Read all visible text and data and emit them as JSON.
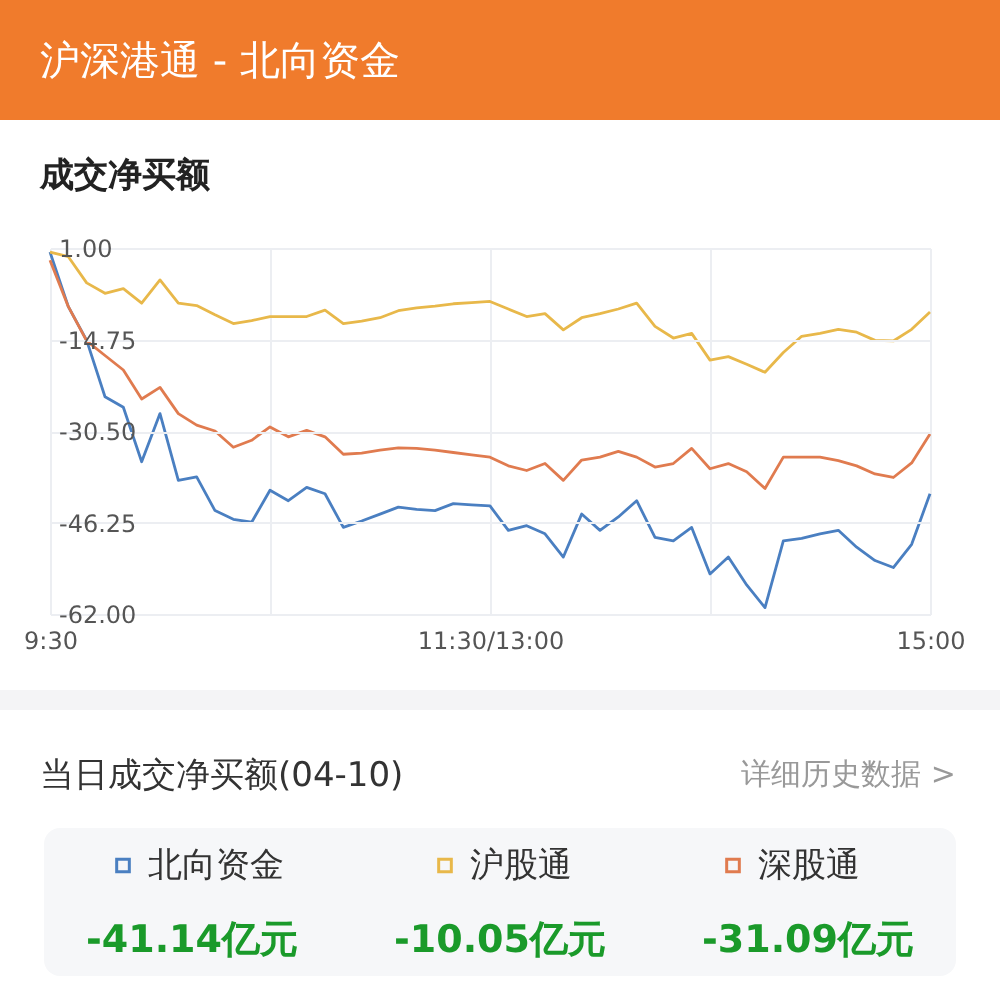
{
  "chart_data": {
    "type": "line",
    "title": "沪深港通 - 北向资金",
    "subtitle": "成交净买额",
    "categories": [
      "9:30",
      null,
      null,
      null,
      null,
      null,
      null,
      null,
      null,
      null,
      null,
      null,
      null,
      null,
      null,
      null,
      null,
      null,
      null,
      null,
      null,
      null,
      null,
      null,
      "11:30/13:00",
      null,
      null,
      null,
      null,
      null,
      null,
      null,
      null,
      null,
      null,
      null,
      null,
      null,
      null,
      null,
      null,
      null,
      null,
      null,
      null,
      null,
      null,
      null,
      "15:00"
    ],
    "ylim": [
      -62,
      1
    ],
    "yticks": [
      {
        "value": 1,
        "label": "1.00"
      },
      {
        "value": -14.75,
        "label": "-14.75"
      },
      {
        "value": -30.5,
        "label": "-30.50"
      },
      {
        "value": -46.25,
        "label": "-46.25"
      },
      {
        "value": -62,
        "label": "-62.00"
      }
    ],
    "grid": true,
    "legend": "bottom",
    "series": [
      {
        "name": "北向资金",
        "color": "#4a7fc1",
        "values": [
          0.3,
          -9.1,
          -14.9,
          -24.6,
          -26.4,
          -35.8,
          -27.5,
          -39.0,
          -38.4,
          -44.2,
          -45.7,
          -46.2,
          -40.7,
          -42.5,
          -40.2,
          -41.3,
          -47.1,
          -46.0,
          -44.8,
          -43.6,
          -44.0,
          -44.2,
          -43.0,
          -43.2,
          -43.4,
          -47.6,
          -46.8,
          -48.2,
          -52.2,
          -44.8,
          -47.6,
          -45.3,
          -42.5,
          -48.8,
          -49.4,
          -47.1,
          -55.1,
          -52.2,
          -57.0,
          -60.9,
          -49.4,
          -49.0,
          -48.2,
          -47.6,
          -50.5,
          -52.8,
          -54.0,
          -50.0,
          -41.3
        ]
      },
      {
        "name": "沪股通",
        "color": "#e8b84a",
        "values": [
          0.3,
          -0.5,
          -5.0,
          -6.8,
          -6.0,
          -8.5,
          -4.5,
          -8.5,
          -8.9,
          -10.5,
          -12.0,
          -11.5,
          -10.8,
          -10.8,
          -10.8,
          -9.7,
          -12.0,
          -11.6,
          -11.0,
          -9.8,
          -9.3,
          -9.0,
          -8.6,
          -8.4,
          -8.2,
          -9.5,
          -10.8,
          -10.3,
          -13.1,
          -11.0,
          -10.3,
          -9.5,
          -8.5,
          -12.5,
          -14.5,
          -13.7,
          -18.3,
          -17.7,
          -19.0,
          -20.4,
          -17.0,
          -14.2,
          -13.7,
          -13.0,
          -13.5,
          -14.9,
          -15.0,
          -13.0,
          -10.0
        ]
      },
      {
        "name": "深股通",
        "color": "#e07b4f",
        "values": [
          -1.1,
          -9.1,
          -15.0,
          -17.5,
          -20.0,
          -25.0,
          -23.0,
          -27.5,
          -29.5,
          -30.5,
          -33.3,
          -32.1,
          -29.8,
          -31.5,
          -30.4,
          -31.5,
          -34.5,
          -34.3,
          -33.8,
          -33.4,
          -33.5,
          -33.8,
          -34.2,
          -34.6,
          -35.0,
          -36.5,
          -37.3,
          -36.1,
          -39.0,
          -35.5,
          -35.0,
          -34.0,
          -35.0,
          -36.7,
          -36.1,
          -33.5,
          -37.0,
          -36.1,
          -37.5,
          -40.4,
          -35.0,
          -35.0,
          -35.0,
          -35.6,
          -36.5,
          -37.9,
          -38.5,
          -36.0,
          -31.0
        ]
      }
    ],
    "annotations": [
      "当日成交净买额(04-10)",
      "详细历史数据 >",
      "-41.14亿元",
      "-10.05亿元",
      "-31.09亿元"
    ]
  }
}
